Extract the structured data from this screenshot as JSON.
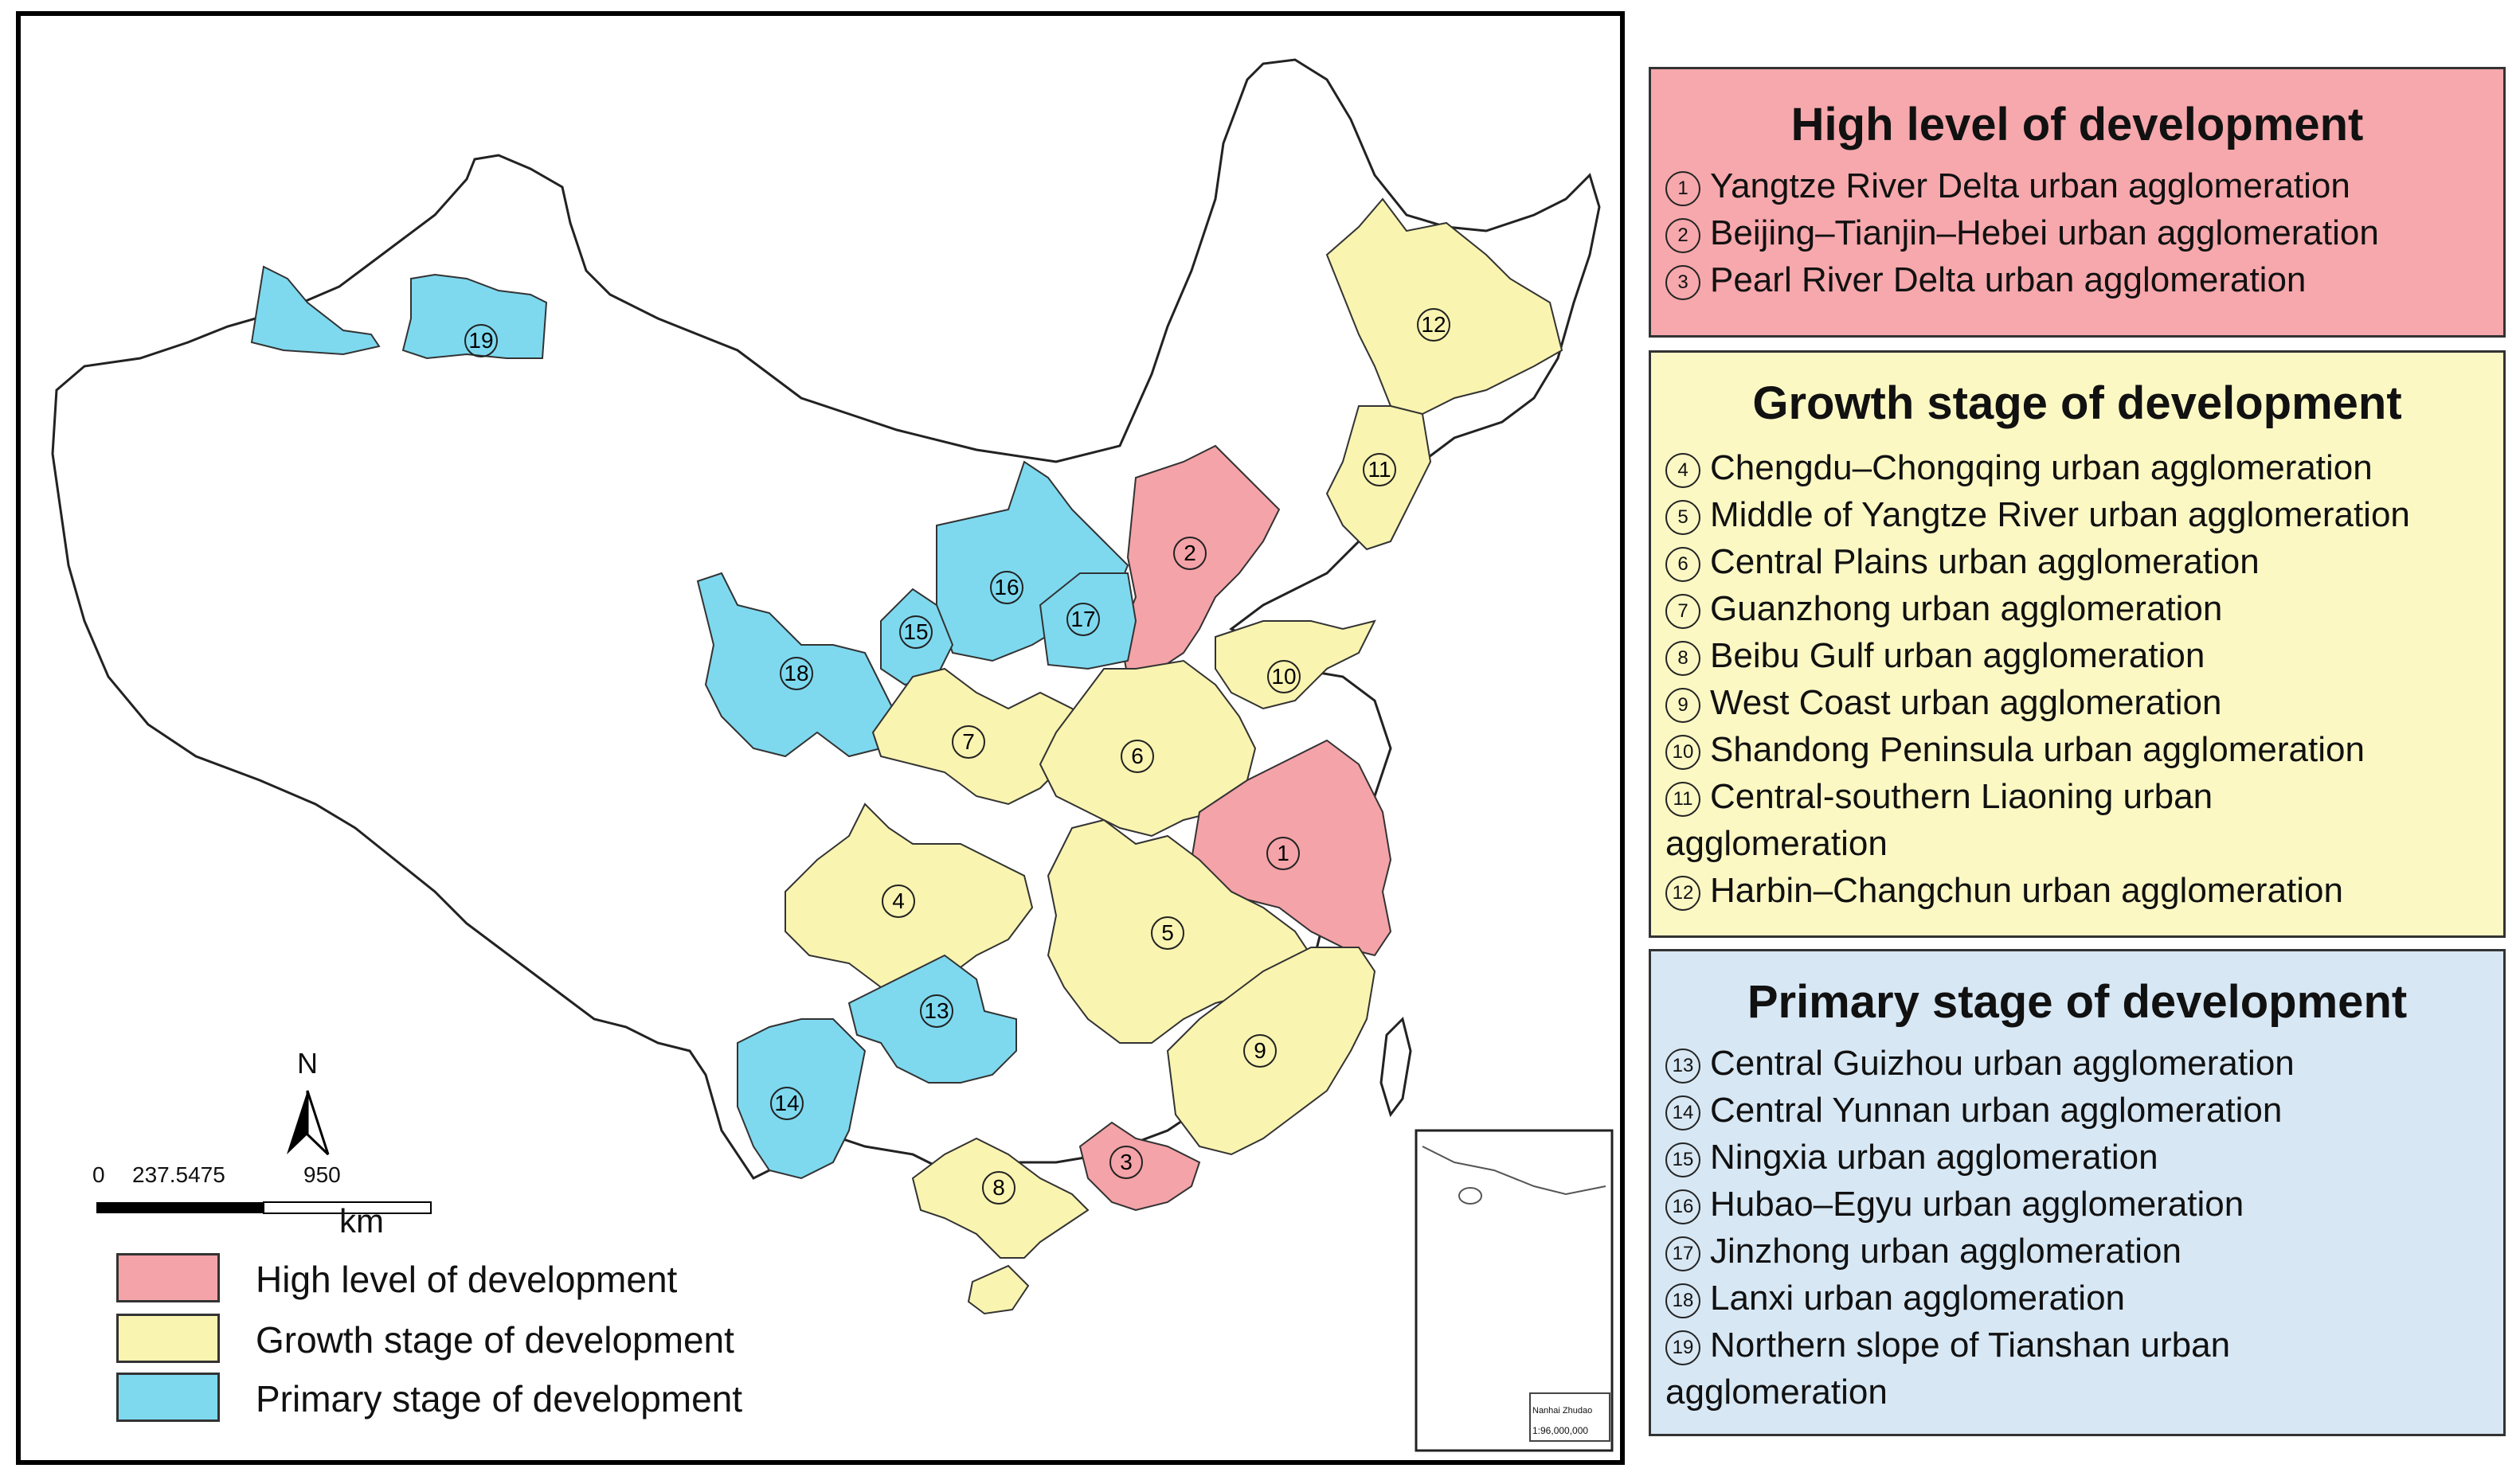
{
  "colors": {
    "high": "#f4a3a8",
    "growth": "#f9f4b0",
    "primary": "#7ed9ef",
    "high_panel": "#f6a8ac",
    "growth_panel": "#fbf8c4",
    "primary_panel": "#d7e7f4"
  },
  "panels": {
    "high": {
      "title": "High level of development",
      "items": [
        {
          "num": "1",
          "name": "Yangtze River Delta urban agglomeration"
        },
        {
          "num": "2",
          "name": "Beijing–Tianjin–Hebei urban agglomeration"
        },
        {
          "num": "3",
          "name": "Pearl River Delta urban agglomeration"
        }
      ]
    },
    "growth": {
      "title": "Growth stage of development",
      "items": [
        {
          "num": "4",
          "name": "Chengdu–Chongqing urban agglomeration"
        },
        {
          "num": "5",
          "name": "Middle of Yangtze River urban agglomeration"
        },
        {
          "num": "6",
          "name": "Central Plains urban agglomeration"
        },
        {
          "num": "7",
          "name": "Guanzhong urban agglomeration"
        },
        {
          "num": "8",
          "name": "Beibu Gulf urban agglomeration"
        },
        {
          "num": "9",
          "name": "West Coast urban agglomeration"
        },
        {
          "num": "10",
          "name": "Shandong Peninsula urban agglomeration"
        },
        {
          "num": "11",
          "name": "Central-southern Liaoning  urban agglomeration"
        },
        {
          "num": "12",
          "name": "Harbin–Changchun urban agglomeration"
        }
      ]
    },
    "primary": {
      "title": "Primary stage of development",
      "items": [
        {
          "num": "13",
          "name": "Central Guizhou urban agglomeration"
        },
        {
          "num": "14",
          "name": "Central Yunnan urban agglomeration"
        },
        {
          "num": "15",
          "name": "Ningxia urban agglomeration"
        },
        {
          "num": "16",
          "name": "Hubao–Egyu urban agglomeration"
        },
        {
          "num": "17",
          "name": "Jinzhong urban agglomeration"
        },
        {
          "num": "18",
          "name": "Lanxi urban agglomeration"
        },
        {
          "num": "19",
          "name": "Northern slope of Tianshan urban agglomeration"
        }
      ]
    }
  },
  "legend": {
    "high": "High level of development",
    "growth": "Growth stage of development",
    "primary": "Primary stage of development"
  },
  "scale_bar": {
    "labels": [
      "0",
      "237.5475",
      "950"
    ],
    "unit": "km"
  },
  "north_arrow": {
    "label": "N"
  },
  "inset": {
    "name": "Nanhai Zhudao",
    "scale": "1:96,000,000"
  },
  "map_regions": [
    {
      "num": "1",
      "level": "high"
    },
    {
      "num": "2",
      "level": "high"
    },
    {
      "num": "3",
      "level": "high"
    },
    {
      "num": "4",
      "level": "growth"
    },
    {
      "num": "5",
      "level": "growth"
    },
    {
      "num": "6",
      "level": "growth"
    },
    {
      "num": "7",
      "level": "growth"
    },
    {
      "num": "8",
      "level": "growth"
    },
    {
      "num": "9",
      "level": "growth"
    },
    {
      "num": "10",
      "level": "growth"
    },
    {
      "num": "11",
      "level": "growth"
    },
    {
      "num": "12",
      "level": "growth"
    },
    {
      "num": "13",
      "level": "primary"
    },
    {
      "num": "14",
      "level": "primary"
    },
    {
      "num": "15",
      "level": "primary"
    },
    {
      "num": "16",
      "level": "primary"
    },
    {
      "num": "17",
      "level": "primary"
    },
    {
      "num": "18",
      "level": "primary"
    },
    {
      "num": "19",
      "level": "primary"
    }
  ]
}
